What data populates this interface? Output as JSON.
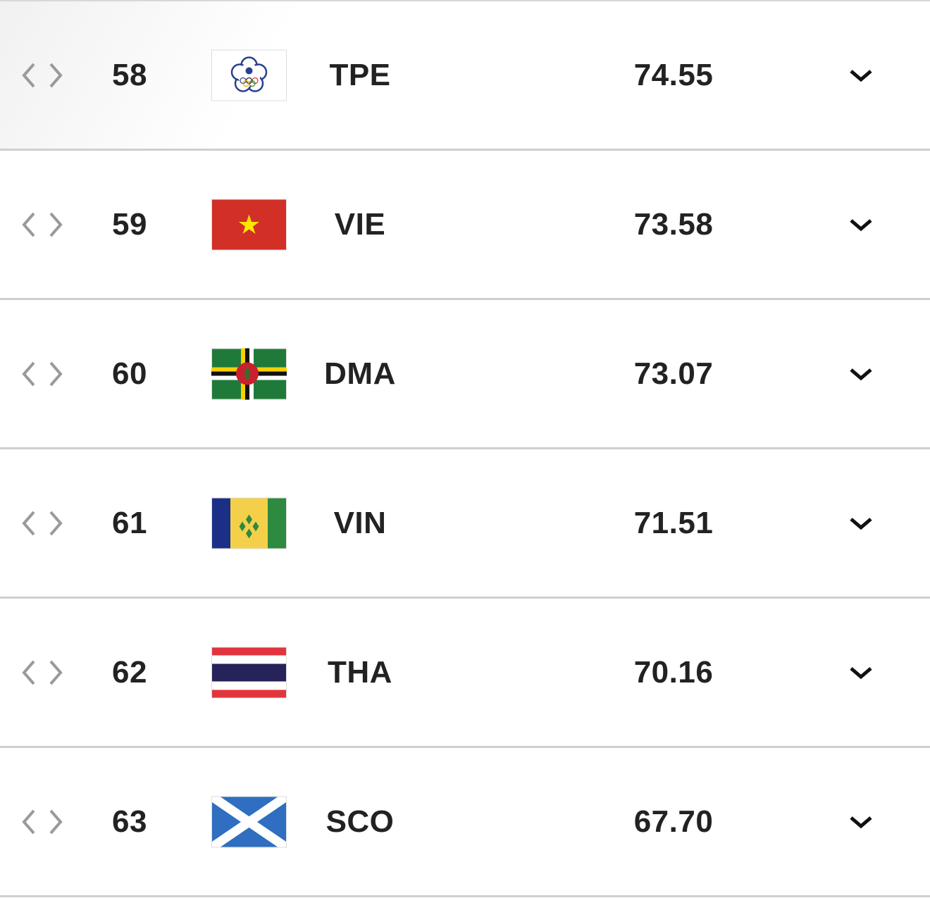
{
  "table": {
    "rows": [
      {
        "rank": 58,
        "code": "TPE",
        "points": "74.55"
      },
      {
        "rank": 59,
        "code": "VIE",
        "points": "73.58"
      },
      {
        "rank": 60,
        "code": "DMA",
        "points": "73.07"
      },
      {
        "rank": 61,
        "code": "VIN",
        "points": "71.51"
      },
      {
        "rank": 62,
        "code": "THA",
        "points": "70.16"
      },
      {
        "rank": 63,
        "code": "SCO",
        "points": "67.70"
      }
    ]
  }
}
